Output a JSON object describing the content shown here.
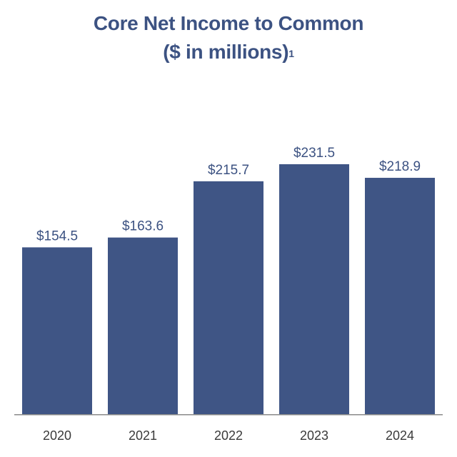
{
  "chart_data": {
    "type": "bar",
    "title": "Core Net Income to Common",
    "subtitle": "($ in millions)",
    "subtitle_footnote": "1",
    "categories": [
      "2020",
      "2021",
      "2022",
      "2023",
      "2024"
    ],
    "values": [
      154.5,
      163.6,
      215.7,
      231.5,
      218.9
    ],
    "value_labels": [
      "$154.5",
      "$163.6",
      "$215.7",
      "$231.5",
      "$218.9"
    ],
    "xlabel": "",
    "ylabel": "",
    "ylim": [
      0,
      250
    ],
    "grid": false,
    "legend": "none",
    "bar_color": "#3f5585"
  }
}
